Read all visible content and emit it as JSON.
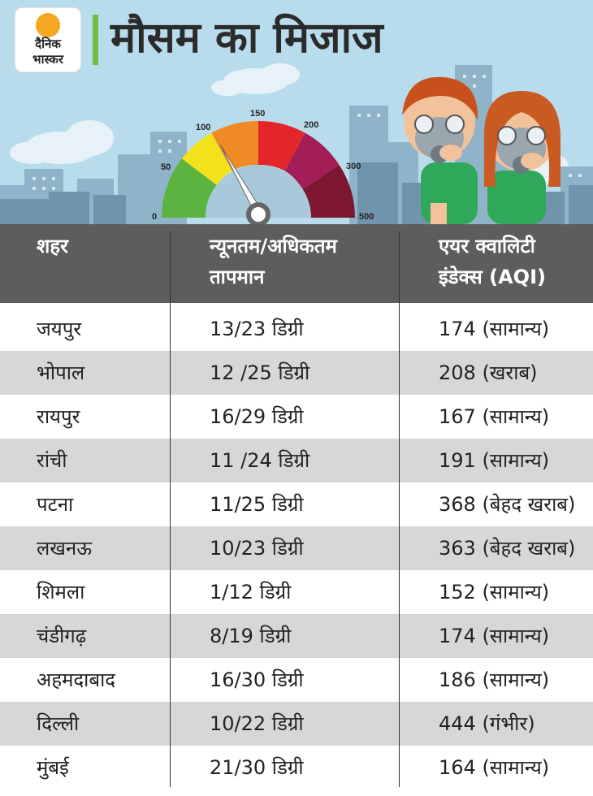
{
  "header": {
    "title": "मौसम का मिजाज",
    "logo_text_line1": "दैनिक",
    "logo_text_line2": "भास्कर"
  },
  "gauge": {
    "scale_labels": [
      "0",
      "50",
      "100",
      "150",
      "200",
      "300",
      "500"
    ],
    "needle_value": 174
  },
  "table": {
    "headers": [
      "शहर",
      "न्यूनतम/अधिकतम तापमान",
      "एयर क्वालिटी इंडेक्स (AQI)"
    ],
    "rows": [
      {
        "city": "जयपुर",
        "temp": "13/23 डिग्री",
        "aqi": "174 (सामान्य)"
      },
      {
        "city": "भोपाल",
        "temp": "12 /25 डिग्री",
        "aqi": "208 (खराब)"
      },
      {
        "city": "रायपुर",
        "temp": "16/29  डिग्री",
        "aqi": "167 (सामान्य)"
      },
      {
        "city": "रांची",
        "temp": "11 /24 डिग्री",
        "aqi": "191 (सामान्य)"
      },
      {
        "city": "पटना",
        "temp": "11/25 डिग्री",
        "aqi": "368 (बेहद खराब)"
      },
      {
        "city": "लखनऊ",
        "temp": "10/23 डिग्री",
        "aqi": "363 (बेहद खराब)"
      },
      {
        "city": "शिमला",
        "temp": "1/12 डिग्री",
        "aqi": "152 (सामान्य)"
      },
      {
        "city": "चंडीगढ़",
        "temp": "8/19 डिग्री",
        "aqi": "174 (सामान्य)"
      },
      {
        "city": "अहमदाबाद",
        "temp": "16/30 डिग्री",
        "aqi": "186 (सामान्य)"
      },
      {
        "city": "दिल्ली",
        "temp": "10/22 डिग्री",
        "aqi": "444 (गंभीर)"
      },
      {
        "city": "मुंबई",
        "temp": "21/30 डिग्री",
        "aqi": "164 (सामान्य)"
      }
    ]
  },
  "colors": {
    "header_bg": "#5d5d5d",
    "row_alt_bg": "#d7d7d7",
    "sky": "#b9dced",
    "accent_green": "#6fbf3a",
    "gauge_segments": [
      "#5ab43f",
      "#f2e21c",
      "#f08a24",
      "#e3262a",
      "#a31e57",
      "#7c1631"
    ]
  }
}
